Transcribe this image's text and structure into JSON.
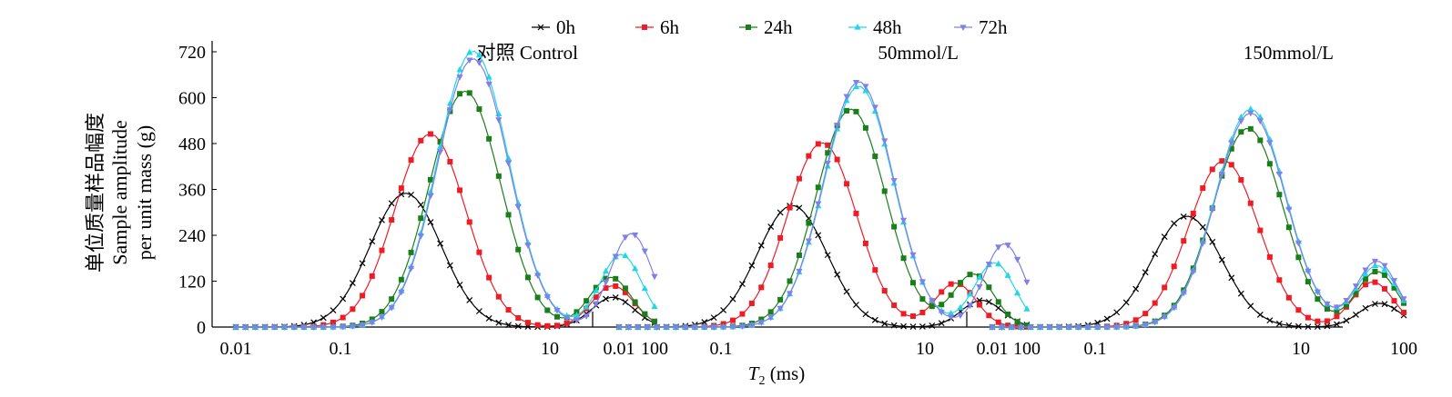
{
  "chart_data": {
    "type": "line",
    "xlabel_italic": "T",
    "xlabel_sub": "2",
    "xlabel_rest": " (ms)",
    "ylabel_lines": [
      "单位质量样品幅度",
      "Sample amplitude",
      "per unit mass (g)"
    ],
    "xscale": "log",
    "xlim": [
      0.01,
      100
    ],
    "ylim": [
      0,
      720
    ],
    "y_ticks": [
      "0",
      "120",
      "240",
      "360",
      "480",
      "600",
      "720"
    ],
    "x_ticks": [
      "0.01",
      "0.1",
      "10",
      "100"
    ],
    "legend_position": "top",
    "series_styles": [
      {
        "name": "0h",
        "color": "#000000",
        "marker": "x"
      },
      {
        "name": "6h",
        "color": "#ee1c25",
        "marker": "square"
      },
      {
        "name": "24h",
        "color": "#1a7f1a",
        "marker": "square"
      },
      {
        "name": "48h",
        "color": "#22d6e6",
        "marker": "triangle-up"
      },
      {
        "name": "72h",
        "color": "#8080e6",
        "marker": "triangle-down"
      }
    ],
    "panels": [
      {
        "title": "对照 Control",
        "series": [
          {
            "name": "0h",
            "peaks": [
              {
                "center": 0.42,
                "height": 350
              },
              {
                "center": 40,
                "height": 78
              }
            ]
          },
          {
            "name": "6h",
            "peaks": [
              {
                "center": 0.72,
                "height": 505
              },
              {
                "center": 40,
                "height": 108
              }
            ]
          },
          {
            "name": "24h",
            "peaks": [
              {
                "center": 1.55,
                "height": 617
              },
              {
                "center": 38,
                "height": 130
              }
            ]
          },
          {
            "name": "48h",
            "peaks": [
              {
                "center": 1.85,
                "height": 722
              },
              {
                "center": 48,
                "height": 190
              }
            ]
          },
          {
            "name": "72h",
            "peaks": [
              {
                "center": 1.85,
                "height": 702
              },
              {
                "center": 60,
                "height": 245
              }
            ]
          }
        ]
      },
      {
        "title": "50mmol/L",
        "series": [
          {
            "name": "0h",
            "peaks": [
              {
                "center": 0.5,
                "height": 318
              },
              {
                "center": 36,
                "height": 70
              }
            ]
          },
          {
            "name": "6h",
            "peaks": [
              {
                "center": 0.98,
                "height": 482
              },
              {
                "center": 20,
                "height": 115
              }
            ]
          },
          {
            "name": "24h",
            "peaks": [
              {
                "center": 1.88,
                "height": 570
              },
              {
                "center": 30,
                "height": 138
              }
            ]
          },
          {
            "name": "48h",
            "peaks": [
              {
                "center": 2.25,
                "height": 630
              },
              {
                "center": 48,
                "height": 168
              }
            ]
          },
          {
            "name": "72h",
            "peaks": [
              {
                "center": 2.25,
                "height": 642
              },
              {
                "center": 60,
                "height": 218
              }
            ]
          }
        ]
      },
      {
        "title": "150mmol/L",
        "series": [
          {
            "name": "0h",
            "peaks": [
              {
                "center": 0.78,
                "height": 290
              },
              {
                "center": 58,
                "height": 62
              }
            ]
          },
          {
            "name": "6h",
            "peaks": [
              {
                "center": 1.78,
                "height": 435
              },
              {
                "center": 50,
                "height": 118
              }
            ]
          },
          {
            "name": "24h",
            "peaks": [
              {
                "center": 3.05,
                "height": 520
              },
              {
                "center": 55,
                "height": 145
              }
            ]
          },
          {
            "name": "48h",
            "peaks": [
              {
                "center": 3.25,
                "height": 570
              },
              {
                "center": 55,
                "height": 160
              }
            ]
          },
          {
            "name": "72h",
            "peaks": [
              {
                "center": 3.25,
                "height": 560
              },
              {
                "center": 55,
                "height": 172
              }
            ]
          }
        ]
      }
    ]
  }
}
